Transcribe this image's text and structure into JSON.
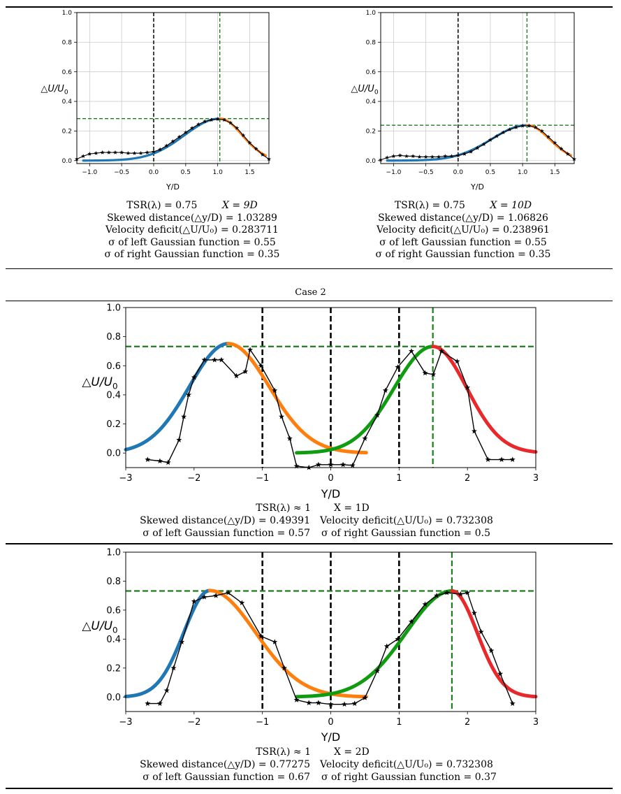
{
  "case_label": "Case 2",
  "captions": [
    {
      "line1": [
        "TSR(λ) = 0.75",
        "X = 9D"
      ],
      "line2": "Skewed distance(△y/D) = 1.03289",
      "line3": "Velocity deficit(△U/U₀) = 0.283711",
      "line4": "σ of left Gaussian function = 0.55",
      "line5": "σ of right Gaussian function = 0.35"
    },
    {
      "line1": [
        "TSR(λ) = 0.75",
        "X = 10D"
      ],
      "line2": "Skewed distance(△y/D) = 1.06826",
      "line3": "Velocity deficit(△U/U₀) = 0.238961",
      "line4": "σ of left Gaussian function = 0.55",
      "line5": "σ of right Gaussian function = 0.35"
    },
    {
      "row1": [
        "TSR(λ) ≈ 1",
        "X = 1D"
      ],
      "row2": [
        "Skewed distance(△y/D) = 0.49391",
        "Velocity deficit(△U/U₀) = 0.732308"
      ],
      "row3": [
        "σ of left Gaussian function = 0.57",
        "σ of right Gaussian function = 0.5"
      ]
    },
    {
      "row1": [
        "TSR(λ) ≈ 1",
        "X = 2D"
      ],
      "row2": [
        "Skewed distance(△y/D) = 0.77275",
        "Velocity deficit(△U/U₀) = 0.732308"
      ],
      "row3": [
        "σ of left Gaussian function = 0.67",
        "σ of right Gaussian function = 0.37"
      ]
    }
  ],
  "colors": {
    "blue": "#1f77b4",
    "orange": "#ff7f0e",
    "green": "#109c10",
    "red": "#e8282b",
    "black": "#000000",
    "ref_green": "#1a7f1a",
    "grid": "#cccccc"
  },
  "chart_data": [
    {
      "type": "line",
      "title": "",
      "xlabel": "Y/D",
      "ylabel": "△U/U0",
      "xlim": [
        -1.2,
        1.8
      ],
      "ylim": [
        -0.02,
        1.0
      ],
      "xticks": [
        -1.0,
        -0.5,
        0.0,
        0.5,
        1.0,
        1.5
      ],
      "xtick_labels": [
        "−1.0",
        "−0.5",
        "0.0",
        "0.5",
        "1.0",
        "1.5"
      ],
      "yticks": [
        0.0,
        0.2,
        0.4,
        0.6,
        0.8,
        1.0
      ],
      "ytick_labels": [
        "0.0",
        "0.2",
        "0.4",
        "0.6",
        "0.8",
        "1.0"
      ],
      "grid": true,
      "vlines_black": [
        0.0
      ],
      "vline_green": 1.03289,
      "hline_green": 0.283711,
      "gaussians": [
        {
          "name": "left Gaussian",
          "color": "blue",
          "mu": 1.03289,
          "amp": 0.283711,
          "sigma": 0.55,
          "range": [
            -1.1,
            1.03289
          ]
        },
        {
          "name": "right Gaussian",
          "color": "orange",
          "mu": 1.03289,
          "amp": 0.283711,
          "sigma": 0.35,
          "range": [
            1.03289,
            1.75
          ]
        }
      ],
      "series": [
        {
          "name": "measured",
          "marker": "star",
          "x": [
            -1.2,
            -1.1,
            -1.0,
            -0.9,
            -0.8,
            -0.7,
            -0.6,
            -0.5,
            -0.4,
            -0.3,
            -0.2,
            -0.1,
            0.0,
            0.1,
            0.2,
            0.3,
            0.4,
            0.5,
            0.6,
            0.7,
            0.8,
            0.9,
            1.0,
            1.1,
            1.2,
            1.3,
            1.4,
            1.5,
            1.6,
            1.7,
            1.8
          ],
          "y": [
            0.01,
            0.03,
            0.045,
            0.05,
            0.055,
            0.055,
            0.055,
            0.055,
            0.05,
            0.05,
            0.05,
            0.055,
            0.06,
            0.075,
            0.1,
            0.13,
            0.16,
            0.19,
            0.22,
            0.245,
            0.265,
            0.275,
            0.28,
            0.275,
            0.255,
            0.22,
            0.17,
            0.12,
            0.08,
            0.04,
            0.01
          ]
        }
      ]
    },
    {
      "type": "line",
      "title": "",
      "xlabel": "Y/D",
      "ylabel": "△U/U0",
      "xlim": [
        -1.2,
        1.8
      ],
      "ylim": [
        -0.02,
        1.0
      ],
      "xticks": [
        -1.0,
        -0.5,
        0.0,
        0.5,
        1.0,
        1.5
      ],
      "xtick_labels": [
        "−1.0",
        "−0.5",
        "0.0",
        "0.5",
        "1.0",
        "1.5"
      ],
      "yticks": [
        0.0,
        0.2,
        0.4,
        0.6,
        0.8,
        1.0
      ],
      "ytick_labels": [
        "0.0",
        "0.2",
        "0.4",
        "0.6",
        "0.8",
        "1.0"
      ],
      "grid": true,
      "vlines_black": [
        0.0
      ],
      "vline_green": 1.06826,
      "hline_green": 0.238961,
      "gaussians": [
        {
          "name": "left Gaussian",
          "color": "blue",
          "mu": 1.06826,
          "amp": 0.238961,
          "sigma": 0.55,
          "range": [
            -1.1,
            1.06826
          ]
        },
        {
          "name": "right Gaussian",
          "color": "orange",
          "mu": 1.06826,
          "amp": 0.238961,
          "sigma": 0.35,
          "range": [
            1.06826,
            1.75
          ]
        }
      ],
      "series": [
        {
          "name": "measured",
          "marker": "star",
          "x": [
            -1.2,
            -1.1,
            -1.0,
            -0.9,
            -0.8,
            -0.7,
            -0.6,
            -0.5,
            -0.4,
            -0.3,
            -0.2,
            -0.1,
            0.0,
            0.1,
            0.2,
            0.3,
            0.4,
            0.5,
            0.6,
            0.7,
            0.8,
            0.9,
            1.0,
            1.1,
            1.2,
            1.3,
            1.4,
            1.5,
            1.6,
            1.7,
            1.8
          ],
          "y": [
            0.005,
            0.02,
            0.03,
            0.035,
            0.03,
            0.03,
            0.025,
            0.025,
            0.025,
            0.025,
            0.03,
            0.03,
            0.035,
            0.045,
            0.06,
            0.085,
            0.11,
            0.14,
            0.165,
            0.19,
            0.21,
            0.225,
            0.235,
            0.235,
            0.225,
            0.2,
            0.16,
            0.12,
            0.08,
            0.045,
            0.01
          ]
        }
      ]
    },
    {
      "type": "line",
      "title": "",
      "xlabel": "Y/D",
      "ylabel": "△U/U0",
      "xlim": [
        -3.0,
        3.0
      ],
      "ylim": [
        -0.1,
        1.0
      ],
      "xticks": [
        -3,
        -2,
        -1,
        0,
        1,
        2,
        3
      ],
      "xtick_labels": [
        "−3",
        "−2",
        "−1",
        "0",
        "1",
        "2",
        "3"
      ],
      "yticks": [
        0.0,
        0.2,
        0.4,
        0.6,
        0.8,
        1.0
      ],
      "ytick_labels": [
        "0.0",
        "0.2",
        "0.4",
        "0.6",
        "0.8",
        "1.0"
      ],
      "grid": false,
      "vlines_black": [
        -1.0,
        0.0,
        1.0
      ],
      "vline_green": 1.49391,
      "hline_green": 0.732308,
      "gaussians": [
        {
          "name": "left Gaussian (left wake)",
          "color": "blue",
          "mu": -1.5,
          "amp": 0.752,
          "sigma": 0.57,
          "range": [
            -3.0,
            -1.5
          ]
        },
        {
          "name": "right Gaussian (left wake)",
          "color": "orange",
          "mu": -1.5,
          "amp": 0.752,
          "sigma": 0.6,
          "range": [
            -1.5,
            0.52
          ]
        },
        {
          "name": "left Gaussian (right wake)",
          "color": "green",
          "mu": 1.49391,
          "amp": 0.732308,
          "sigma": 0.57,
          "range": [
            -0.5,
            1.49391
          ]
        },
        {
          "name": "right Gaussian (right wake)",
          "color": "red",
          "mu": 1.49391,
          "amp": 0.732308,
          "sigma": 0.5,
          "range": [
            1.49391,
            3.0
          ]
        }
      ],
      "series": [
        {
          "name": "measured",
          "marker": "star",
          "x": [
            -2.68,
            -2.5,
            -2.38,
            -2.22,
            -2.15,
            -2.08,
            -2.0,
            -1.85,
            -1.7,
            -1.6,
            -1.38,
            -1.25,
            -1.18,
            -1.02,
            -0.82,
            -0.72,
            -0.6,
            -0.5,
            -0.32,
            -0.18,
            0.0,
            0.18,
            0.32,
            0.5,
            0.68,
            0.8,
            0.98,
            1.18,
            1.38,
            1.5,
            1.62,
            1.85,
            2.0,
            2.1,
            2.3,
            2.5,
            2.66
          ],
          "y": [
            -0.045,
            -0.055,
            -0.065,
            0.09,
            0.25,
            0.4,
            0.52,
            0.64,
            0.64,
            0.64,
            0.53,
            0.56,
            0.71,
            0.6,
            0.43,
            0.25,
            0.1,
            -0.09,
            -0.1,
            -0.08,
            -0.08,
            -0.08,
            -0.085,
            0.1,
            0.26,
            0.43,
            0.59,
            0.7,
            0.55,
            0.54,
            0.7,
            0.63,
            0.45,
            0.15,
            -0.045,
            -0.045,
            -0.045
          ]
        }
      ]
    },
    {
      "type": "line",
      "title": "",
      "xlabel": "Y/D",
      "ylabel": "△U/U0",
      "xlim": [
        -3.0,
        3.0
      ],
      "ylim": [
        -0.1,
        1.0
      ],
      "xticks": [
        -3,
        -2,
        -1,
        0,
        1,
        2,
        3
      ],
      "xtick_labels": [
        "−3",
        "−2",
        "−1",
        "0",
        "1",
        "2",
        "3"
      ],
      "yticks": [
        0.0,
        0.2,
        0.4,
        0.6,
        0.8,
        1.0
      ],
      "ytick_labels": [
        "0.0",
        "0.2",
        "0.4",
        "0.6",
        "0.8",
        "1.0"
      ],
      "grid": false,
      "vlines_black": [
        -1.0,
        0.0,
        1.0
      ],
      "vline_green": 1.77275,
      "hline_green": 0.732308,
      "gaussians": [
        {
          "name": "left Gaussian (left wake)",
          "color": "blue",
          "mu": -1.77,
          "amp": 0.735,
          "sigma": 0.38,
          "range": [
            -3.0,
            -1.77
          ]
        },
        {
          "name": "right Gaussian (left wake)",
          "color": "orange",
          "mu": -1.77,
          "amp": 0.735,
          "sigma": 0.67,
          "range": [
            -1.77,
            0.52
          ]
        },
        {
          "name": "left Gaussian (right wake)",
          "color": "green",
          "mu": 1.77275,
          "amp": 0.732308,
          "sigma": 0.67,
          "range": [
            -0.5,
            1.77275
          ]
        },
        {
          "name": "right Gaussian (right wake)",
          "color": "red",
          "mu": 1.77275,
          "amp": 0.732308,
          "sigma": 0.37,
          "range": [
            1.77275,
            3.0
          ]
        }
      ],
      "series": [
        {
          "name": "measured",
          "marker": "star",
          "x": [
            -2.68,
            -2.5,
            -2.4,
            -2.3,
            -2.18,
            -2.0,
            -1.85,
            -1.68,
            -1.5,
            -1.3,
            -1.02,
            -0.82,
            -0.68,
            -0.5,
            -0.32,
            -0.18,
            0.0,
            0.2,
            0.35,
            0.5,
            0.68,
            0.82,
            0.98,
            1.18,
            1.38,
            1.55,
            1.7,
            1.9,
            2.0,
            2.1,
            2.2,
            2.35,
            2.48,
            2.66
          ],
          "y": [
            -0.045,
            -0.045,
            0.045,
            0.2,
            0.38,
            0.66,
            0.69,
            0.7,
            0.72,
            0.65,
            0.42,
            0.38,
            0.2,
            -0.02,
            -0.04,
            -0.04,
            -0.05,
            -0.05,
            -0.045,
            -0.005,
            0.18,
            0.35,
            0.4,
            0.52,
            0.64,
            0.7,
            0.72,
            0.71,
            0.72,
            0.58,
            0.45,
            0.32,
            0.16,
            -0.045
          ]
        }
      ]
    }
  ]
}
